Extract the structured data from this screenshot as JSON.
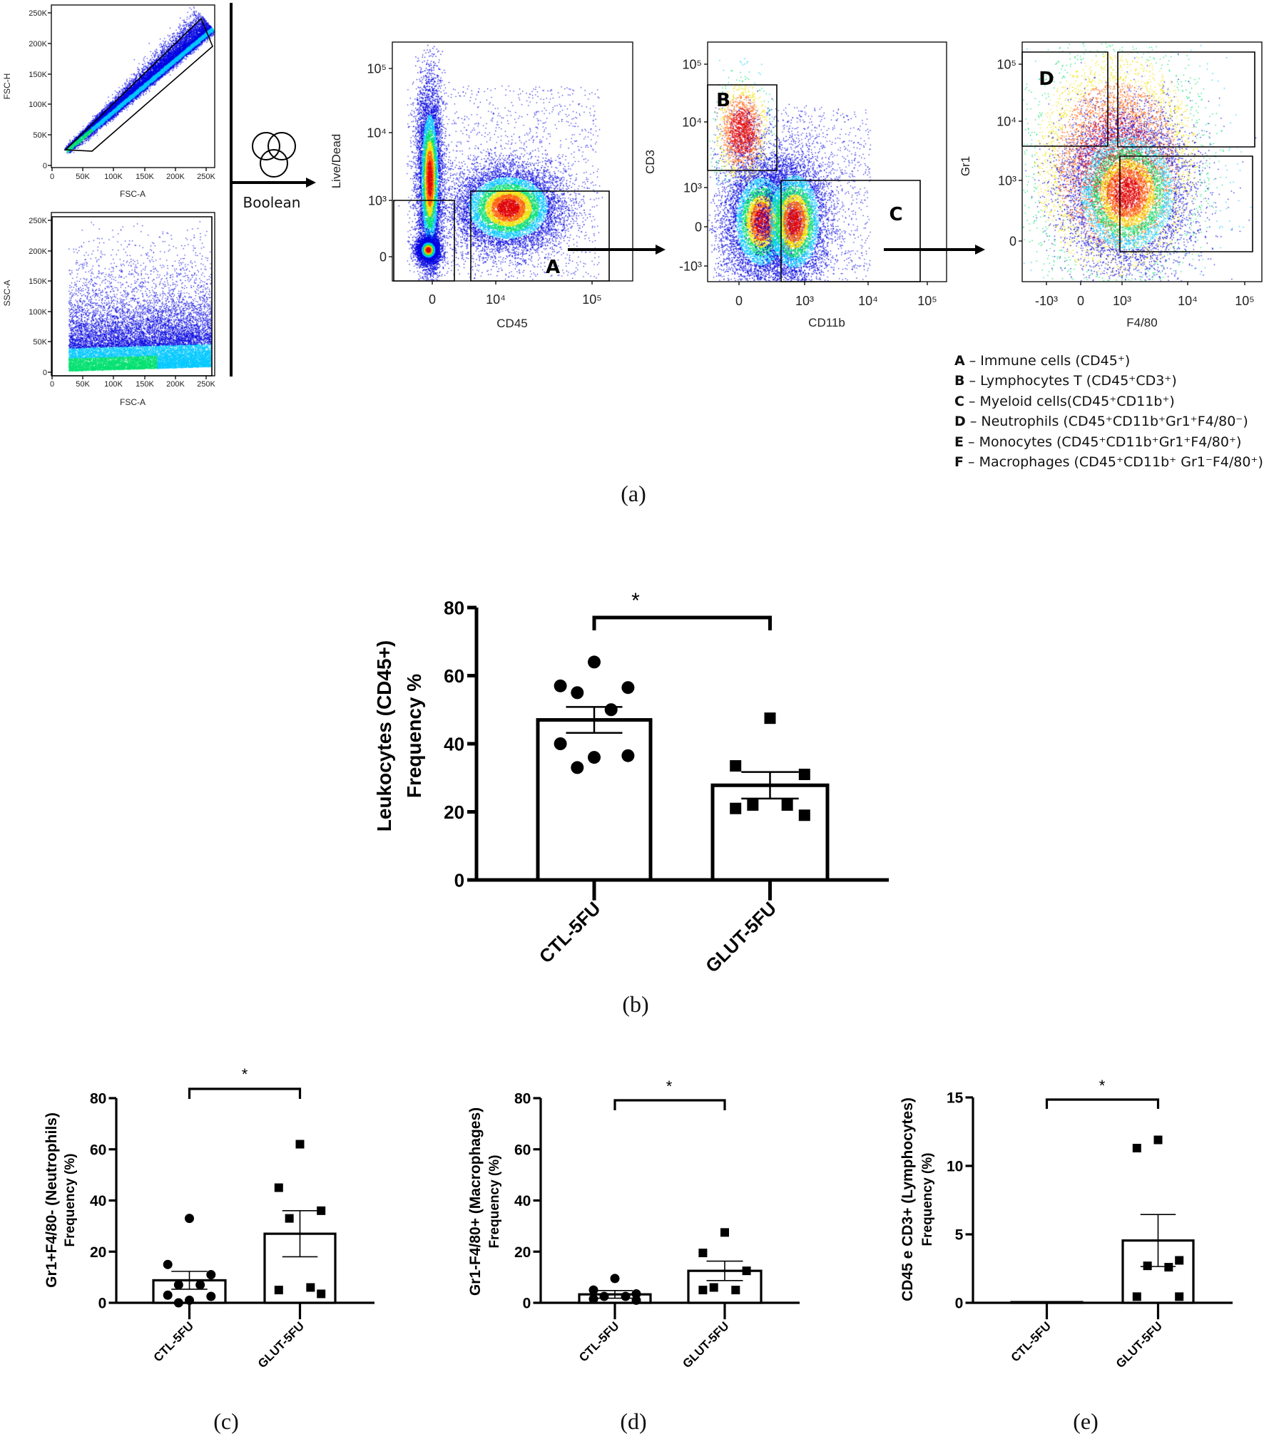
{
  "panel_labels": {
    "a": "(a)",
    "b": "(b)",
    "c": "(c)",
    "d": "(d)",
    "e": "(e)"
  },
  "gating": {
    "boolean_label": "Boolean",
    "boolean_icon": "venn-three-circles-icon",
    "plots": [
      {
        "id": "fsc",
        "xlabel": "FSC-A",
        "ylabel": "FSC-H",
        "xticks": [
          "0",
          "50K",
          "100K",
          "150K",
          "200K",
          "250K"
        ],
        "yticks": [
          "0",
          "50K",
          "100K",
          "150K",
          "200K",
          "250K"
        ],
        "gates": []
      },
      {
        "id": "ssc",
        "xlabel": "FSC-A",
        "ylabel": "SSC-A",
        "xticks": [
          "0",
          "50K",
          "100K",
          "150K",
          "200K",
          "250K"
        ],
        "yticks": [
          "0",
          "50K",
          "100K",
          "150K",
          "200K",
          "250K"
        ],
        "gates": []
      },
      {
        "id": "cd45",
        "xlabel": "CD45",
        "ylabel": "Live/Dead",
        "xticks": [
          "0",
          "10⁴",
          "10⁵"
        ],
        "yticks": [
          "0",
          "10³",
          "10⁴",
          "10⁵"
        ],
        "gates": [
          "A"
        ]
      },
      {
        "id": "cd11b",
        "xlabel": "CD11b",
        "ylabel": "CD3",
        "xticks": [
          "0",
          "10³",
          "10⁴",
          "10⁵"
        ],
        "yticks": [
          "-10³",
          "0",
          "10³",
          "10⁴",
          "10⁵"
        ],
        "gates": [
          "B",
          "C"
        ]
      },
      {
        "id": "gr1",
        "xlabel": "F4/80",
        "ylabel": "Gr1",
        "xticks": [
          "-10³",
          "0",
          "10³",
          "10⁴",
          "10⁵"
        ],
        "yticks": [
          "0",
          "10³",
          "10⁴",
          "10⁵"
        ],
        "gates": [
          "D"
        ]
      }
    ],
    "legend": [
      {
        "letter": "A",
        "text": "– Immune cells (CD45⁺)"
      },
      {
        "letter": "B",
        "text": "– Lymphocytes T (CD45⁺CD3⁺)"
      },
      {
        "letter": "C",
        "text": "– Myeloid cells(CD45⁺CD11b⁺)"
      },
      {
        "letter": "D",
        "text": "– Neutrophils (CD45⁺CD11b⁺Gr1⁺F4/80⁻)"
      },
      {
        "letter": "E",
        "text": "– Monocytes (CD45⁺CD11b⁺Gr1⁺F4/80⁺)"
      },
      {
        "letter": "F",
        "text": "– Macrophages (CD45⁺CD11b⁺ Gr1⁻F4/80⁺)"
      }
    ],
    "density_colors": [
      "#0000e0",
      "#00c8ff",
      "#00e070",
      "#f0e000",
      "#ff6000",
      "#e00000"
    ]
  },
  "chart_data": [
    {
      "panel": "b",
      "type": "bar",
      "ylabel": [
        "Leukocytes (CD45+)",
        "Frequency %"
      ],
      "categories": [
        "CTL-5FU",
        "GLUT-5FU"
      ],
      "markers": [
        "circle",
        "square"
      ],
      "ylim": [
        0,
        80
      ],
      "yticks": [
        "0",
        "20",
        "40",
        "60",
        "80"
      ],
      "means": [
        47,
        27.8
      ],
      "sem": [
        3.8,
        3.9
      ],
      "points": [
        [
          64,
          57,
          56.5,
          55,
          50,
          40,
          36.5,
          36,
          33
        ],
        [
          47.5,
          33.5,
          31,
          22,
          22,
          21,
          19
        ]
      ],
      "significance": "*",
      "color": "#000000"
    },
    {
      "panel": "c",
      "type": "bar",
      "ylabel": [
        "Gr1+F4/80- (Neutrophils)",
        "Frequency (%)"
      ],
      "categories": [
        "CTL-5FU",
        "GLUT-5FU"
      ],
      "markers": [
        "circle",
        "square"
      ],
      "ylim": [
        0,
        80
      ],
      "yticks": [
        "0",
        "20",
        "40",
        "60",
        "80"
      ],
      "means": [
        8.8,
        27
      ],
      "sem": [
        3.5,
        9
      ],
      "points": [
        [
          33,
          15,
          11,
          7,
          7,
          3,
          2.5,
          1,
          0
        ],
        [
          62,
          45,
          36,
          33,
          6,
          5,
          3.5
        ]
      ],
      "significance": "*",
      "color": "#000000"
    },
    {
      "panel": "d",
      "type": "bar",
      "ylabel": [
        "Gr1-F4/80+ (Macrophages)",
        "Frequency (%)"
      ],
      "categories": [
        "CTL-5FU",
        "GLUT-5FU"
      ],
      "markers": [
        "circle",
        "square"
      ],
      "ylim": [
        0,
        80
      ],
      "yticks": [
        "0",
        "20",
        "40",
        "60",
        "80"
      ],
      "means": [
        3.3,
        12.5
      ],
      "sem": [
        1.5,
        3.8
      ],
      "points": [
        [
          9.5,
          5,
          3.5,
          2.5,
          2.5,
          1.5,
          1
        ],
        [
          27.5,
          19.5,
          12.5,
          6,
          5,
          5
        ]
      ],
      "significance": "*",
      "color": "#000000"
    },
    {
      "panel": "e",
      "type": "bar",
      "ylabel": [
        "CD45 e CD3+ (Lymphocytes)",
        "Frequency (%)"
      ],
      "categories": [
        "CTL-5FU",
        "GLUT-5FU"
      ],
      "markers": [
        "circle",
        "square"
      ],
      "ylim": [
        0,
        15
      ],
      "yticks": [
        "0",
        "5",
        "10",
        "15"
      ],
      "means": [
        0.05,
        4.55
      ],
      "sem": [
        0,
        1.9
      ],
      "points": [
        [],
        [
          11.9,
          11.3,
          3.1,
          2.7,
          2.6,
          0.45,
          0.45
        ]
      ],
      "significance": "*",
      "color": "#000000"
    }
  ]
}
